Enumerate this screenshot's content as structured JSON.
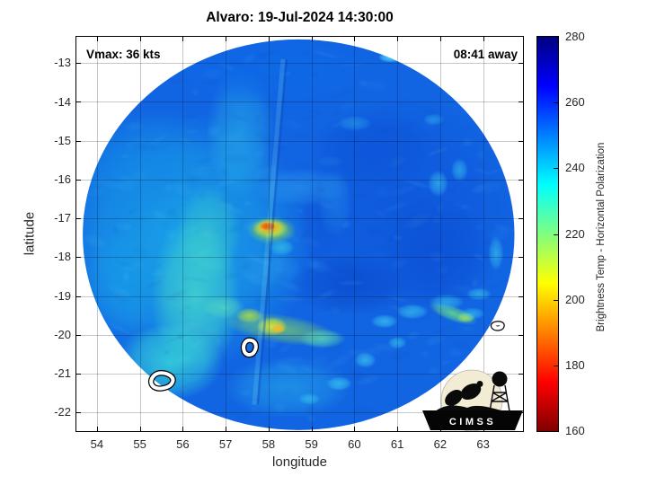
{
  "title": "Alvaro: 19-Jul-2024 14:30:00",
  "annotations": {
    "vmax": "Vmax: 36 kts",
    "time_offset": "08:41 away"
  },
  "logo": {
    "text": "CIMSS"
  },
  "axes": {
    "xlabel": "longitude",
    "ylabel": "latitude",
    "xlim": [
      53.5,
      63.95
    ],
    "ylim": [
      -22.5,
      -12.3
    ],
    "xticks": [
      54,
      55,
      56,
      57,
      58,
      59,
      60,
      61,
      62,
      63
    ],
    "yticks": [
      -13,
      -14,
      -15,
      -16,
      -17,
      -18,
      -19,
      -20,
      -21,
      -22
    ],
    "grid_color": "rgba(0,0,0,0.22)",
    "tick_label_color": "#262626"
  },
  "colorbar": {
    "label": "Brightness Temp - Horizontal Polarization",
    "min": 160,
    "max": 280,
    "ticks": [
      160,
      180,
      200,
      220,
      240,
      260,
      280
    ],
    "stops": [
      [
        "#800000",
        0
      ],
      [
        "#ff0000",
        0.125
      ],
      [
        "#ffff00",
        0.375
      ],
      [
        "#00ffff",
        0.625
      ],
      [
        "#0000ff",
        0.875
      ],
      [
        "#000080",
        1
      ]
    ]
  },
  "chart_data": {
    "type": "heatmap",
    "title": "Alvaro: 19-Jul-2024 14:30:00",
    "xlabel": "longitude",
    "ylabel": "latitude",
    "value_label": "Brightness Temp - Horizontal Polarization (K)",
    "value_range": [
      160,
      280
    ],
    "swath": {
      "center_lon": 58.7,
      "center_lat": -17.42,
      "radius_deg": 5.03
    },
    "key_values": {
      "eye_hotspot": {
        "lon": 58.0,
        "lat": -17.25,
        "approx_value_k": 190
      },
      "warm_arc": {
        "lon": 58.1,
        "lat": -19.8,
        "approx_value_k": 210
      },
      "left_swath_background_k": 238,
      "right_swath_background_k": 254
    },
    "base_color": "#1164e2",
    "features_format": [
      "lon",
      "lat",
      "rx_deg",
      "ry_deg",
      "color",
      "alpha",
      "rotation_rad"
    ],
    "features": [
      [
        56.0,
        -17.6,
        3.0,
        3.4,
        "#1aa9e8",
        0.9
      ],
      [
        54.9,
        -15.6,
        1.6,
        1.5,
        "#128ae6",
        0.55
      ],
      [
        54.6,
        -18.6,
        0.9,
        1.4,
        "#17a2e8",
        0.5
      ],
      [
        56.3,
        -19.0,
        1.05,
        2.0,
        "#45d8cc",
        0.8
      ],
      [
        55.7,
        -20.7,
        1.25,
        1.0,
        "#38dcd8",
        0.8
      ],
      [
        56.6,
        -17.4,
        0.75,
        1.3,
        "#40d4c8",
        0.55
      ],
      [
        57.35,
        -14.8,
        0.8,
        1.7,
        "#2cc0ea",
        0.5
      ],
      [
        58.1,
        -13.2,
        2.4,
        0.9,
        "#0d6ae8",
        0.85
      ],
      [
        61.2,
        -16.8,
        2.6,
        3.0,
        "#0e58dc",
        0.9
      ],
      [
        60.4,
        -15.2,
        1.5,
        1.0,
        "#0b4ed6",
        0.5
      ],
      [
        61.9,
        -17.9,
        1.3,
        1.5,
        "#0a4ad0",
        0.55
      ],
      [
        59.9,
        -18.7,
        1.4,
        0.8,
        "#0945c8",
        0.6
      ],
      [
        59.2,
        -17.0,
        0.5,
        1.3,
        "#0c52d6",
        0.45
      ],
      [
        58.75,
        -16.2,
        1.15,
        0.5,
        "#2d9cee",
        0.55
      ],
      [
        57.95,
        -18.3,
        0.85,
        0.45,
        "#2896ea",
        0.5
      ],
      [
        59.55,
        -16.6,
        0.4,
        0.9,
        "#2690e8",
        0.4
      ],
      [
        58.07,
        -17.3,
        0.58,
        0.36,
        "#86d44a",
        0.85
      ],
      [
        58.04,
        -17.26,
        0.42,
        0.26,
        "#e6ec2c",
        0.95
      ],
      [
        58.02,
        -17.23,
        0.3,
        0.18,
        "#ffae12",
        1
      ],
      [
        57.98,
        -17.2,
        0.19,
        0.11,
        "#ee4a08",
        1
      ],
      [
        58.3,
        -17.75,
        0.3,
        0.22,
        "#38c4e8",
        0.7
      ],
      [
        58.3,
        -19.85,
        1.35,
        0.38,
        "#7fd462",
        0.7,
        0.15
      ],
      [
        58.08,
        -19.78,
        0.36,
        0.24,
        "#d6e634",
        0.95
      ],
      [
        58.22,
        -19.84,
        0.17,
        0.12,
        "#ffb41e",
        1
      ],
      [
        57.55,
        -19.5,
        0.32,
        0.2,
        "#a6da4c",
        0.9
      ],
      [
        56.95,
        -19.3,
        0.5,
        0.3,
        "#52d6c0",
        0.7
      ],
      [
        59.25,
        -20.1,
        0.55,
        0.25,
        "#58d8b8",
        0.75
      ],
      [
        58.45,
        -21.35,
        1.5,
        0.8,
        "#28b2ea",
        0.55
      ],
      [
        62.3,
        -19.45,
        0.6,
        0.2,
        "#68dc8c",
        0.85,
        0.35
      ],
      [
        62.6,
        -19.55,
        0.22,
        0.13,
        "#a8e455",
        0.9
      ],
      [
        60.7,
        -19.65,
        0.32,
        0.18,
        "#3ccdf2",
        0.7
      ],
      [
        61.35,
        -19.4,
        0.38,
        0.2,
        "#3ccdf2",
        0.7
      ],
      [
        62.15,
        -19.15,
        0.42,
        0.2,
        "#3ccdf2",
        0.6
      ],
      [
        62.9,
        -18.95,
        0.3,
        0.16,
        "#3ccdf2",
        0.6
      ],
      [
        60.25,
        -20.65,
        0.26,
        0.2,
        "#3ccdf2",
        0.7
      ],
      [
        59.65,
        -21.25,
        0.3,
        0.18,
        "#3ccdf2",
        0.7
      ],
      [
        61.0,
        -20.2,
        0.22,
        0.16,
        "#3ccdf2",
        0.65
      ],
      [
        58.95,
        -21.65,
        0.26,
        0.15,
        "#3ccdf2",
        0.6
      ],
      [
        61.95,
        -16.1,
        0.24,
        0.34,
        "#3ccdf2",
        0.6
      ],
      [
        62.45,
        -15.75,
        0.2,
        0.3,
        "#3ccdf2",
        0.55
      ],
      [
        60.85,
        -12.85,
        0.3,
        0.14,
        "#55e2f5",
        0.9
      ],
      [
        61.85,
        -14.45,
        0.25,
        0.15,
        "#3ccdf2",
        0.4
      ],
      [
        60.0,
        -14.55,
        0.4,
        0.2,
        "#3ccdf2",
        0.35
      ],
      [
        63.3,
        -17.9,
        0.18,
        0.45,
        "#3ccdf2",
        0.6
      ],
      [
        62.75,
        -19.45,
        0.3,
        0.16,
        "#3ccdf2",
        0.6
      ]
    ],
    "seam": {
      "from": [
        58.42,
        -12.9
      ],
      "to": [
        57.75,
        -21.8
      ],
      "color": "#0f46b4",
      "alpha": 0.4,
      "light_color": "#8ee8f0",
      "light_alpha": 0.18
    },
    "noise": {
      "count": 260,
      "seed": 7
    },
    "contours_note": "white/black closed contour outlines (lon,lat polygons)",
    "contours": [
      [
        [
          55.25,
          -21.15
        ],
        [
          55.38,
          -20.98
        ],
        [
          55.62,
          -20.98
        ],
        [
          55.8,
          -21.12
        ],
        [
          55.72,
          -21.32
        ],
        [
          55.45,
          -21.4
        ],
        [
          55.28,
          -21.32
        ]
      ],
      [
        [
          57.4,
          -20.28
        ],
        [
          57.5,
          -20.12
        ],
        [
          57.68,
          -20.16
        ],
        [
          57.72,
          -20.34
        ],
        [
          57.62,
          -20.52
        ],
        [
          57.45,
          -20.5
        ]
      ],
      [
        [
          63.22,
          -19.75
        ],
        [
          63.33,
          -19.7
        ],
        [
          63.45,
          -19.73
        ],
        [
          63.42,
          -19.82
        ],
        [
          63.28,
          -19.83
        ]
      ]
    ]
  }
}
